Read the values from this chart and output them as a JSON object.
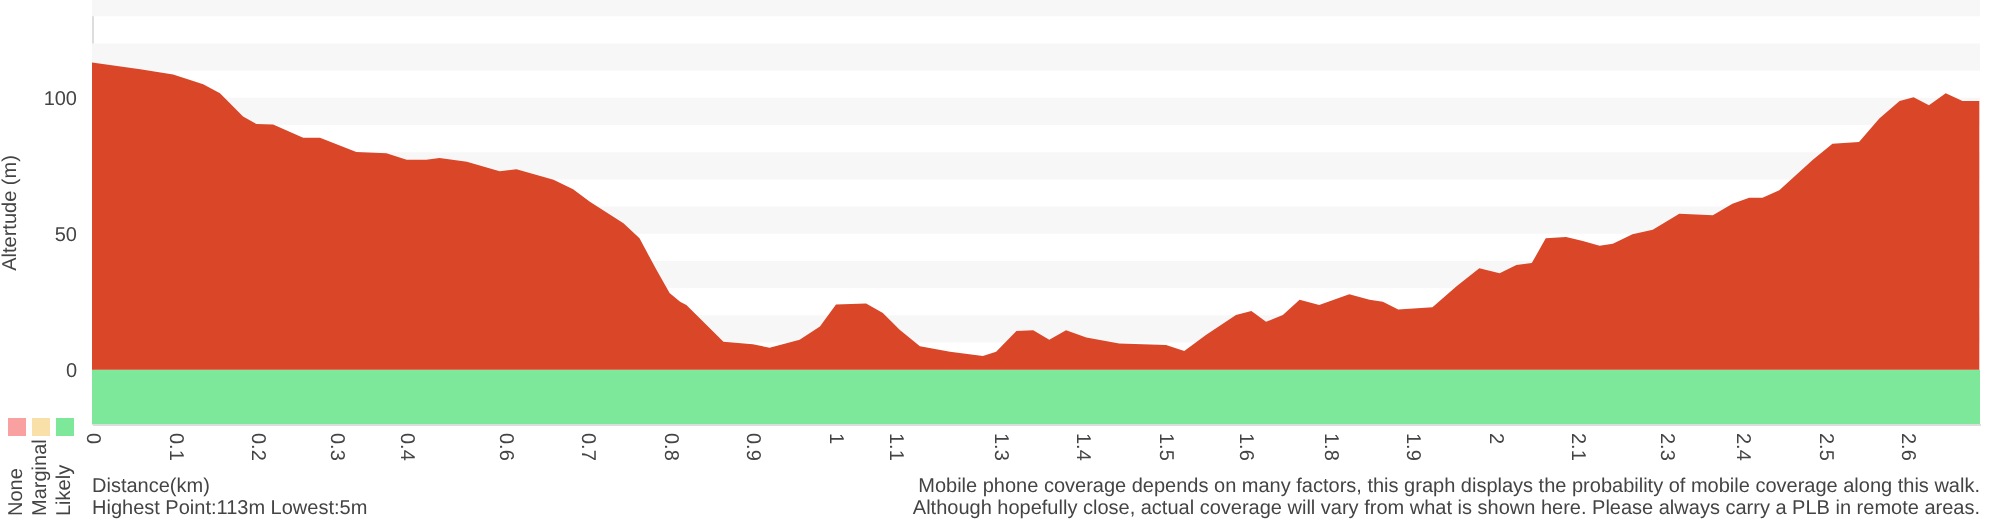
{
  "chart_data": {
    "type": "area",
    "ylabel": "Altertude (m)",
    "xlabel": "Distance(km)",
    "x": [
      0,
      0.069,
      0.116,
      0.159,
      0.183,
      0.216,
      0.235,
      0.259,
      0.302,
      0.326,
      0.378,
      0.421,
      0.45,
      0.478,
      0.497,
      0.536,
      0.583,
      0.607,
      0.66,
      0.688,
      0.712,
      0.76,
      0.783,
      0.807,
      0.826,
      0.841,
      0.85,
      0.903,
      0.945,
      0.969,
      1.012,
      1.041,
      1.064,
      1.107,
      1.131,
      1.155,
      1.184,
      1.227,
      1.274,
      1.293,
      1.322,
      1.346,
      1.369,
      1.393,
      1.422,
      1.469,
      1.536,
      1.562,
      1.593,
      1.636,
      1.658,
      1.679,
      1.703,
      1.727,
      1.755,
      1.798,
      1.827,
      1.846,
      1.868,
      1.917,
      1.951,
      1.984,
      2.013,
      2.037,
      2.059,
      2.079,
      2.108,
      2.132,
      2.156,
      2.175,
      2.203,
      2.232,
      2.27,
      2.318,
      2.346,
      2.37,
      2.389,
      2.413,
      2.461,
      2.489,
      2.527,
      2.556,
      2.585,
      2.605,
      2.627,
      2.651,
      2.675,
      2.699
    ],
    "series": [
      {
        "color": "#d94628",
        "values": [
          113,
          110.5,
          108.6,
          105,
          101.7,
          93.1,
          90.4,
          90.2,
          85.3,
          85.3,
          80.1,
          79.6,
          77.2,
          77.2,
          77.9,
          76.5,
          73,
          73.7,
          69.9,
          66.4,
          61.8,
          53.9,
          48.3,
          36.8,
          28.2,
          25,
          23.8,
          10.3,
          9.3,
          8.1,
          11,
          15.9,
          24,
          24.3,
          20.8,
          14.7,
          8.6,
          6.6,
          5,
          6.6,
          14.2,
          14.5,
          11,
          14.5,
          11.8,
          9.6,
          9.1,
          6.9,
          12.7,
          20.1,
          21.6,
          17.6,
          20.1,
          25.7,
          23.8,
          27.7,
          25.7,
          25,
          22.1,
          23,
          30.6,
          37.3,
          35.5,
          38.5,
          39.2,
          48.3,
          48.8,
          47.3,
          45.6,
          46.3,
          49.8,
          51.5,
          57.4,
          56.8,
          61,
          63.2,
          63.2,
          66,
          77.2,
          83.1,
          83.8,
          92.4,
          98.8,
          100.2,
          97.3,
          101.7,
          98.8,
          98.8
        ]
      }
    ],
    "xlim": [
      0,
      2.7
    ],
    "xticks": [
      {
        "value": 0,
        "label": "0"
      },
      {
        "value": 0.118,
        "label": "0.1"
      },
      {
        "value": 0.236,
        "label": "0.2"
      },
      {
        "value": 0.349,
        "label": "0.3"
      },
      {
        "value": 0.449,
        "label": "0.4"
      },
      {
        "value": 0.59,
        "label": "0.6"
      },
      {
        "value": 0.708,
        "label": "0.7"
      },
      {
        "value": 0.826,
        "label": "0.8"
      },
      {
        "value": 0.944,
        "label": "0.9"
      },
      {
        "value": 1.062,
        "label": "1"
      },
      {
        "value": 1.149,
        "label": "1.1"
      },
      {
        "value": 1.298,
        "label": "1.3"
      },
      {
        "value": 1.416,
        "label": "1.4"
      },
      {
        "value": 1.534,
        "label": "1.5"
      },
      {
        "value": 1.649,
        "label": "1.6"
      },
      {
        "value": 1.77,
        "label": "1.8"
      },
      {
        "value": 1.888,
        "label": "1.9"
      },
      {
        "value": 2.006,
        "label": "2"
      },
      {
        "value": 2.124,
        "label": "2.1"
      },
      {
        "value": 2.251,
        "label": "2.3"
      },
      {
        "value": 2.36,
        "label": "2.4"
      },
      {
        "value": 2.478,
        "label": "2.5"
      },
      {
        "value": 2.596,
        "label": "2.6"
      }
    ],
    "ylim": [
      -20,
      136
    ],
    "yticks": [
      0,
      50,
      100
    ],
    "bands": [
      {
        "axis": "y",
        "from": 10,
        "to": 20,
        "color": "#f7f7f7"
      },
      {
        "axis": "y",
        "from": 30,
        "to": 40,
        "color": "#f7f7f7"
      },
      {
        "axis": "y",
        "from": 50,
        "to": 60,
        "color": "#f7f7f7"
      },
      {
        "axis": "y",
        "from": 70,
        "to": 80,
        "color": "#f7f7f7"
      },
      {
        "axis": "y",
        "from": 90,
        "to": 100,
        "color": "#f7f7f7"
      },
      {
        "axis": "y",
        "from": 110,
        "to": 120,
        "color": "#f7f7f7"
      },
      {
        "axis": "y",
        "from": 130,
        "to": 136,
        "color": "#f7f7f7"
      },
      {
        "axis": "y",
        "from": -20,
        "to": 0,
        "color": "#7ee89a"
      }
    ],
    "annotations": [
      "None",
      "Marginal",
      "Likely",
      "Highest Point:113m Lowest:5m",
      "Mobile phone coverage depends on many factors, this graph displays the probability of mobile coverage along this walk.",
      "Although hopefully close, actual coverage will vary from what is shown here. Please always carry a PLB in remote areas."
    ]
  }
}
